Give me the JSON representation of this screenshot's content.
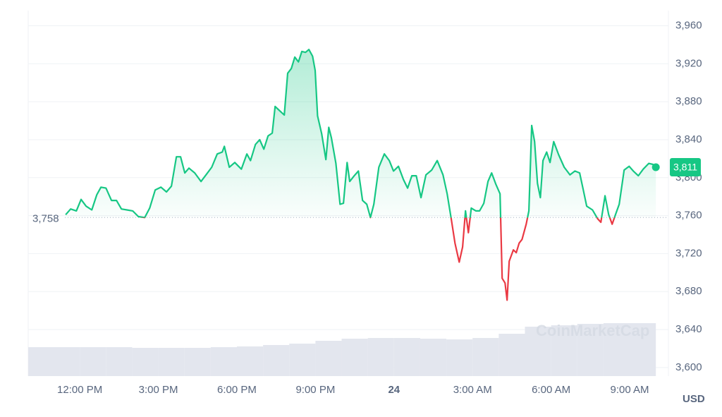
{
  "chart_data": {
    "type": "line",
    "x": [
      11.46,
      11.65,
      11.87,
      12.05,
      12.24,
      12.46,
      12.65,
      12.81,
      13.0,
      13.21,
      13.4,
      13.59,
      13.8,
      14.02,
      14.24,
      14.48,
      14.67,
      14.88,
      15.1,
      15.31,
      15.5,
      15.69,
      15.85,
      16.01,
      16.17,
      16.39,
      16.63,
      16.82,
      17.04,
      17.25,
      17.44,
      17.52,
      17.71,
      17.92,
      18.17,
      18.38,
      18.52,
      18.71,
      18.87,
      19.03,
      19.19,
      19.35,
      19.46,
      19.65,
      19.81,
      19.94,
      20.08,
      20.21,
      20.35,
      20.48,
      20.62,
      20.75,
      20.89,
      20.99,
      21.08,
      21.24,
      21.4,
      21.51,
      21.61,
      21.78,
      21.94,
      22.07,
      22.21,
      22.31,
      22.48,
      22.64,
      22.8,
      22.96,
      23.1,
      23.23,
      23.42,
      23.63,
      23.82,
      23.98,
      24.17,
      24.36,
      24.52,
      24.68,
      24.85,
      25.03,
      25.22,
      25.44,
      25.65,
      25.87,
      26.03,
      26.19,
      26.33,
      26.49,
      26.62,
      26.73,
      26.84,
      26.95,
      27.13,
      27.27,
      27.43,
      27.59,
      27.73,
      27.89,
      28.05,
      28.13,
      28.24,
      28.32,
      28.4,
      28.56,
      28.67,
      28.78,
      28.89,
      29.05,
      29.15,
      29.26,
      29.37,
      29.48,
      29.59,
      29.69,
      29.83,
      29.96,
      30.1,
      30.29,
      30.5,
      30.72,
      30.91,
      31.09,
      31.23,
      31.36,
      31.58,
      31.77,
      31.9,
      32.06,
      32.2,
      32.33,
      32.47,
      32.6,
      32.79,
      32.98,
      33.14,
      33.33,
      33.52,
      33.73,
      33.89,
      34.0
    ],
    "series": [
      {
        "name": "Price",
        "color": "#16c784",
        "color_below": "#ea3943",
        "values": [
          3761,
          3767,
          3765,
          3777,
          3770,
          3766,
          3782,
          3790,
          3789,
          3776,
          3776,
          3767,
          3766,
          3765,
          3759,
          3758,
          3768,
          3787,
          3790,
          3785,
          3791,
          3822,
          3822,
          3805,
          3810,
          3805,
          3796,
          3803,
          3811,
          3825,
          3827,
          3833,
          3811,
          3816,
          3809,
          3825,
          3818,
          3835,
          3840,
          3830,
          3844,
          3847,
          3875,
          3870,
          3866,
          3910,
          3915,
          3927,
          3922,
          3933,
          3932,
          3935,
          3928,
          3913,
          3865,
          3846,
          3819,
          3853,
          3842,
          3815,
          3772,
          3773,
          3816,
          3796,
          3802,
          3807,
          3776,
          3772,
          3758,
          3772,
          3811,
          3825,
          3818,
          3807,
          3812,
          3798,
          3789,
          3802,
          3802,
          3779,
          3803,
          3808,
          3818,
          3803,
          3783,
          3756,
          3731,
          3711,
          3727,
          3765,
          3742,
          3768,
          3765,
          3765,
          3773,
          3796,
          3805,
          3793,
          3783,
          3694,
          3689,
          3671,
          3712,
          3724,
          3721,
          3731,
          3735,
          3751,
          3765,
          3855,
          3838,
          3794,
          3779,
          3818,
          3827,
          3816,
          3838,
          3824,
          3811,
          3803,
          3807,
          3805,
          3787,
          3770,
          3766,
          3757,
          3753,
          3781,
          3761,
          3751,
          3762,
          3772,
          3808,
          3812,
          3807,
          3802,
          3809,
          3815,
          3814,
          3811
        ]
      }
    ],
    "volume": {
      "color": "#e3e6ee",
      "bins": [
        10,
        11,
        12,
        13,
        14,
        15,
        16,
        17,
        18,
        19,
        20,
        21,
        22,
        23,
        24,
        25,
        26,
        27,
        28,
        29,
        30,
        31,
        32,
        33,
        34
      ],
      "values": [
        41,
        41,
        41,
        41,
        40,
        40,
        40,
        41,
        42,
        44,
        46,
        50,
        53,
        54,
        54,
        53,
        52,
        54,
        60,
        70,
        72,
        74,
        75,
        75
      ],
      "ylim": [
        0,
        100
      ]
    },
    "baseline": {
      "value": 3758,
      "label": "3,758"
    },
    "current": {
      "value": 3811,
      "label": "3,811"
    },
    "xlim": [
      10.03,
      34.48
    ],
    "xticks": [
      {
        "value": 12,
        "label": "12:00 PM"
      },
      {
        "value": 15,
        "label": "3:00 PM"
      },
      {
        "value": 18,
        "label": "6:00 PM"
      },
      {
        "value": 21,
        "label": "9:00 PM"
      },
      24,
      {
        "value": 27,
        "label": "3:00 AM"
      },
      {
        "value": 30,
        "label": "6:00 AM"
      },
      {
        "value": 33,
        "label": "9:00 AM"
      }
    ],
    "ylim": [
      3591,
      3976
    ],
    "yticks": [
      {
        "value": 3600,
        "label": "3,600"
      },
      {
        "value": 3640,
        "label": "3,640"
      },
      {
        "value": 3680,
        "label": "3,680"
      },
      {
        "value": 3720,
        "label": "3,720"
      },
      {
        "value": 3760,
        "label": "3,760"
      },
      {
        "value": 3800,
        "label": "3,800"
      },
      {
        "value": 3840,
        "label": "3,840"
      },
      {
        "value": 3880,
        "label": "3,880"
      },
      {
        "value": 3920,
        "label": "3,920"
      },
      {
        "value": 3960,
        "label": "3,960"
      }
    ],
    "unit": "USD",
    "watermark": "CoinMarketCap",
    "grid": true
  }
}
